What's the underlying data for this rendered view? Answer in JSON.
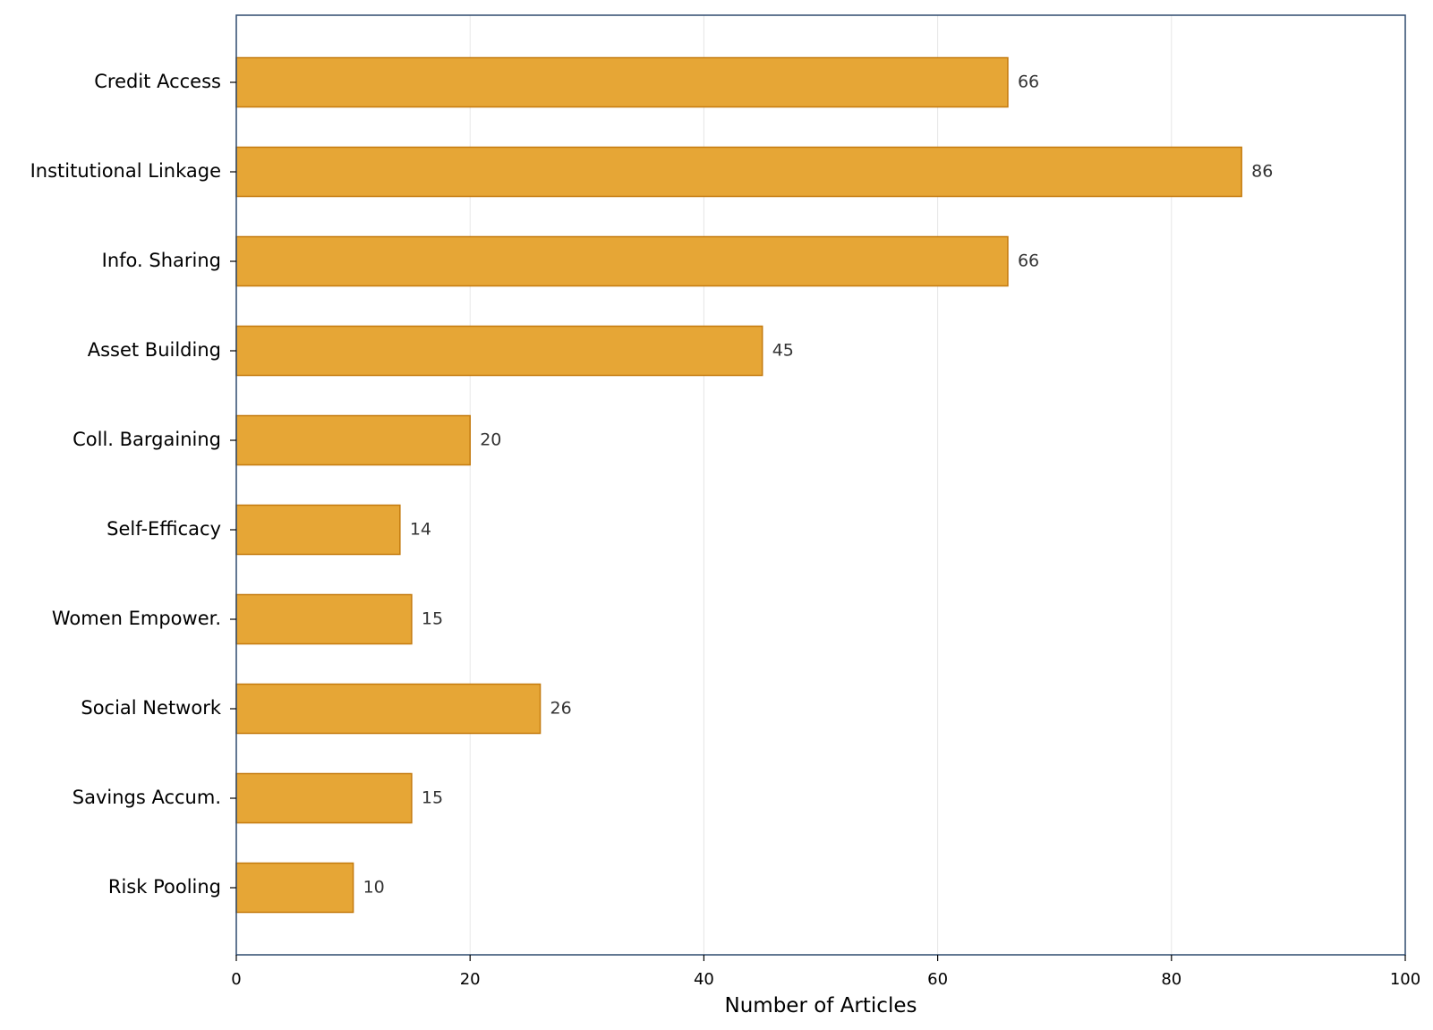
{
  "chart_data": {
    "type": "bar",
    "orientation": "horizontal",
    "categories": [
      "Credit Access",
      "Institutional Linkage",
      "Info. Sharing",
      "Asset Building",
      "Coll. Bargaining",
      "Self-Efficacy",
      "Women Empower.",
      "Social Network",
      "Savings Accum.",
      "Risk Pooling"
    ],
    "values": [
      66,
      86,
      66,
      45,
      20,
      14,
      15,
      26,
      15,
      10
    ],
    "xlabel": "Number of Articles",
    "ylabel": "",
    "xlim": [
      0,
      100
    ],
    "x_ticks": [
      "0",
      "20",
      "40",
      "60",
      "80",
      "100"
    ],
    "grid": "vertical",
    "data_labels": true,
    "colors": {
      "bar_fill": "#E6A636",
      "bar_edge": "#C47A0E",
      "axis": "#2E4A6E",
      "grid": "#E6E6E6"
    }
  }
}
